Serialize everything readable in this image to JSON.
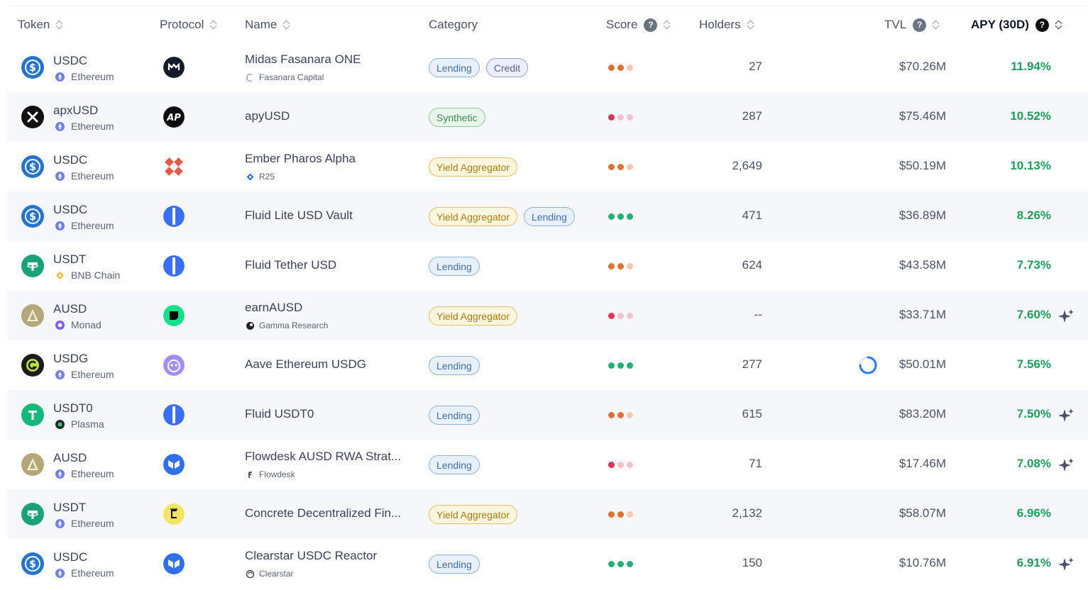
{
  "header": {
    "token": "Token",
    "protocol": "Protocol",
    "name": "Name",
    "category": "Category",
    "score": "Score",
    "holders": "Holders",
    "tvl": "TVL",
    "apy": "APY (30D)",
    "help_glyph": "?"
  },
  "colors": {
    "apy_green": "#1f9d5c",
    "score_orange": "#d9733a",
    "score_red": "#d6375c",
    "score_green": "#27ae77",
    "row_alt_bg": "#f6f7fa"
  },
  "rows": [
    {
      "token": "USDC",
      "token_icon": "usdc-icon",
      "chain": "Ethereum",
      "chain_icon": "ethereum-icon",
      "protocol_icon": "midas-icon",
      "name": "Midas Fasanara ONE",
      "curator": "Fasanara Capital",
      "curator_icon": "fasanara-icon",
      "tags": [
        "Lending",
        "Credit"
      ],
      "score": "medium",
      "holders": "27",
      "tvl": "$70.26M",
      "apy": "11.94%",
      "rewards": false
    },
    {
      "token": "apxUSD",
      "token_icon": "apx-icon",
      "chain": "Ethereum",
      "chain_icon": "ethereum-icon",
      "protocol_icon": "apyx-icon",
      "name": "apyUSD",
      "curator": "",
      "tags": [
        "Synthetic"
      ],
      "score": "low",
      "holders": "287",
      "tvl": "$75.46M",
      "apy": "10.52%",
      "rewards": false
    },
    {
      "token": "USDC",
      "token_icon": "usdc-icon",
      "chain": "Ethereum",
      "chain_icon": "ethereum-icon",
      "protocol_icon": "ember-icon",
      "name": "Ember Pharos Alpha",
      "curator": "R25",
      "curator_icon": "r25-icon",
      "tags": [
        "Yield Aggregator"
      ],
      "score": "medium",
      "holders": "2,649",
      "tvl": "$50.19M",
      "apy": "10.13%",
      "rewards": false
    },
    {
      "token": "USDC",
      "token_icon": "usdc-icon",
      "chain": "Ethereum",
      "chain_icon": "ethereum-icon",
      "protocol_icon": "fluid-icon",
      "name": "Fluid Lite USD Vault",
      "curator": "",
      "tags": [
        "Yield Aggregator",
        "Lending"
      ],
      "score": "high",
      "holders": "471",
      "tvl": "$36.89M",
      "apy": "8.26%",
      "rewards": false
    },
    {
      "token": "USDT",
      "token_icon": "usdt-icon",
      "chain": "BNB Chain",
      "chain_icon": "bnb-icon",
      "protocol_icon": "fluid-icon",
      "name": "Fluid Tether USD",
      "curator": "",
      "tags": [
        "Lending"
      ],
      "score": "medium",
      "holders": "624",
      "tvl": "$43.58M",
      "apy": "7.73%",
      "rewards": false
    },
    {
      "token": "AUSD",
      "token_icon": "ausd-icon",
      "chain": "Monad",
      "chain_icon": "monad-icon",
      "protocol_icon": "gamma-icon",
      "name": "earnAUSD",
      "curator": "Gamma Research",
      "curator_icon": "gamma-research-icon",
      "tags": [
        "Yield Aggregator"
      ],
      "score": "low",
      "holders": "--",
      "tvl": "$33.71M",
      "apy": "7.60%",
      "rewards": true
    },
    {
      "token": "USDG",
      "token_icon": "usdg-icon",
      "chain": "Ethereum",
      "chain_icon": "ethereum-icon",
      "protocol_icon": "aave-icon",
      "name": "Aave Ethereum USDG",
      "curator": "",
      "tags": [
        "Lending"
      ],
      "score": "high",
      "holders": "277",
      "tvl": "$50.01M",
      "apy": "7.56%",
      "rewards": false,
      "loading": true
    },
    {
      "token": "USDT0",
      "token_icon": "usdt0-icon",
      "chain": "Plasma",
      "chain_icon": "plasma-icon",
      "protocol_icon": "fluid-icon",
      "name": "Fluid USDT0",
      "curator": "",
      "tags": [
        "Lending"
      ],
      "score": "medium",
      "holders": "615",
      "tvl": "$83.20M",
      "apy": "7.50%",
      "rewards": true
    },
    {
      "token": "AUSD",
      "token_icon": "ausd-icon",
      "chain": "Ethereum",
      "chain_icon": "ethereum-icon",
      "protocol_icon": "morpho-icon",
      "name": "Flowdesk AUSD RWA Strat...",
      "curator": "Flowdesk",
      "curator_icon": "flowdesk-icon",
      "tags": [
        "Lending"
      ],
      "score": "low",
      "holders": "71",
      "tvl": "$17.46M",
      "apy": "7.08%",
      "rewards": true
    },
    {
      "token": "USDT",
      "token_icon": "usdt-icon",
      "chain": "Ethereum",
      "chain_icon": "ethereum-icon",
      "protocol_icon": "concrete-icon",
      "name": "Concrete Decentralized Fin...",
      "curator": "",
      "tags": [
        "Yield Aggregator"
      ],
      "score": "medium",
      "holders": "2,132",
      "tvl": "$58.07M",
      "apy": "6.96%",
      "rewards": false
    },
    {
      "token": "USDC",
      "token_icon": "usdc-icon",
      "chain": "Ethereum",
      "chain_icon": "ethereum-icon",
      "protocol_icon": "morpho-icon",
      "name": "Clearstar USDC Reactor",
      "curator": "Clearstar",
      "curator_icon": "clearstar-icon",
      "tags": [
        "Lending"
      ],
      "score": "high",
      "holders": "150",
      "tvl": "$10.76M",
      "apy": "6.91%",
      "rewards": true
    }
  ]
}
